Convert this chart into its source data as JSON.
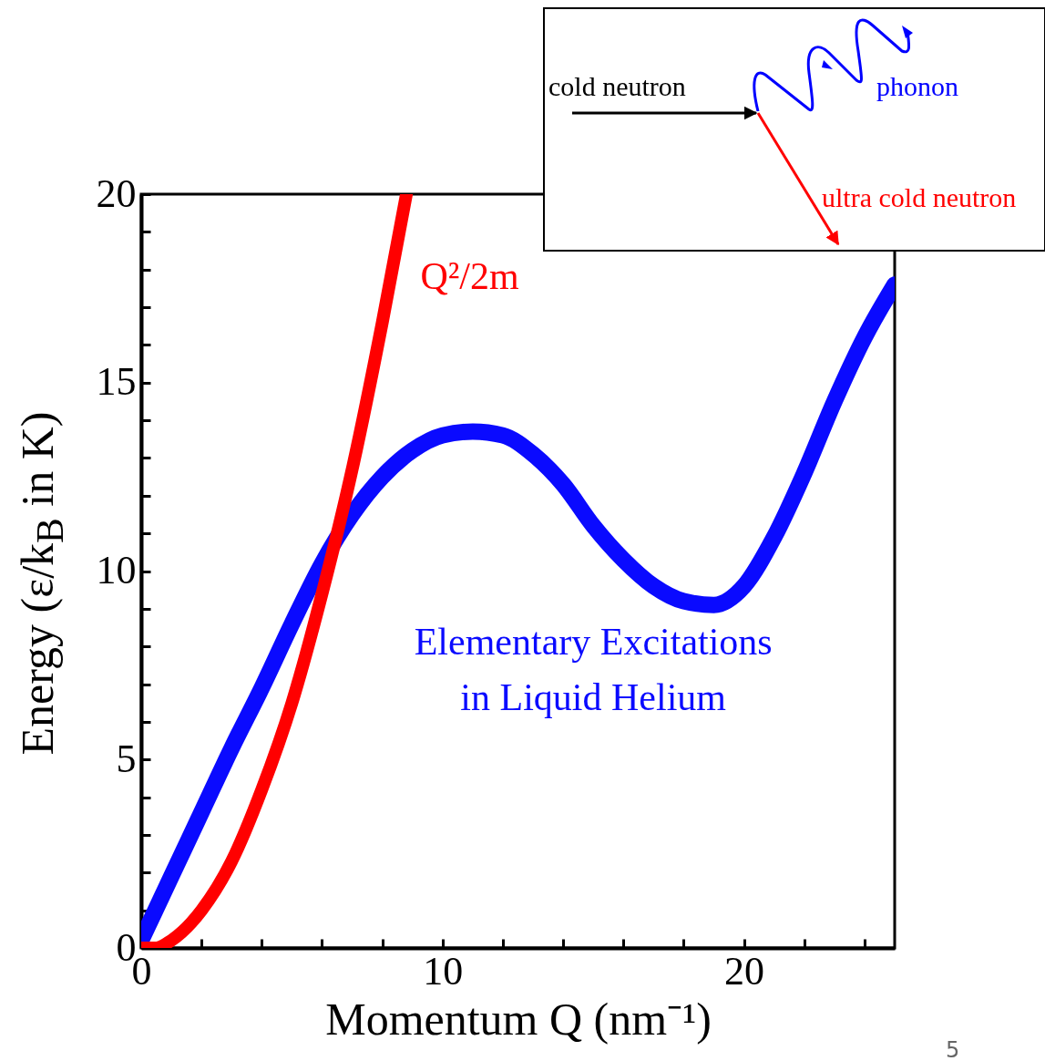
{
  "chart_data": {
    "type": "line",
    "xlabel": "Momentum Q (nm⁻¹)",
    "ylabel": "Energy (ε/k$_{B}$ in K)",
    "xlim": [
      0,
      25
    ],
    "ylim": [
      0,
      20
    ],
    "xticks": [
      0,
      {
        "value": 2,
        "label": null
      },
      {
        "value": 4,
        "label": null
      },
      {
        "value": 6,
        "label": null
      },
      {
        "value": 8,
        "label": null
      },
      10,
      {
        "value": 12,
        "label": null
      },
      {
        "value": 14,
        "label": null
      },
      {
        "value": 16,
        "label": null
      },
      {
        "value": 18,
        "label": null
      },
      20,
      {
        "value": 22,
        "label": null
      },
      {
        "value": 24,
        "label": null
      }
    ],
    "yticks": [
      0,
      {
        "value": 1,
        "label": null
      },
      {
        "value": 2,
        "label": null
      },
      {
        "value": 3,
        "label": null
      },
      {
        "value": 4,
        "label": null
      },
      5,
      {
        "value": 6,
        "label": null
      },
      {
        "value": 7,
        "label": null
      },
      {
        "value": 8,
        "label": null
      },
      {
        "value": 9,
        "label": null
      },
      10,
      {
        "value": 11,
        "label": null
      },
      {
        "value": 12,
        "label": null
      },
      {
        "value": 13,
        "label": null
      },
      {
        "value": 14,
        "label": null
      },
      15,
      {
        "value": 16,
        "label": null
      },
      {
        "value": 17,
        "label": null
      },
      {
        "value": 18,
        "label": null
      },
      {
        "value": 19,
        "label": null
      },
      20
    ],
    "series": [
      {
        "name": "Elementary Excitations in Liquid Helium",
        "color": "#0a0aff",
        "x": [
          0,
          1,
          2,
          3,
          4,
          5,
          6,
          7,
          8,
          9,
          10,
          11,
          12,
          13,
          14,
          15,
          16,
          17,
          18,
          19,
          20,
          21,
          22,
          23,
          24,
          25
        ],
        "values": [
          0.2,
          1.9,
          3.6,
          5.3,
          6.9,
          8.6,
          10.2,
          11.5,
          12.5,
          13.2,
          13.6,
          13.7,
          13.6,
          13.1,
          12.3,
          11.2,
          10.3,
          9.6,
          9.2,
          9.1,
          9.6,
          10.9,
          12.6,
          14.5,
          16.2,
          17.6
        ]
      },
      {
        "name": "Q²/2m",
        "color": "#ff0000",
        "x": [
          0,
          0.5,
          1,
          2,
          3,
          4,
          5,
          6,
          7,
          8,
          8.8
        ],
        "values": [
          0,
          0,
          0.2,
          1,
          2.3,
          4.2,
          6.5,
          9.4,
          12.7,
          16.6,
          20
        ]
      }
    ],
    "annotations": [
      "cold neutron",
      "phonon",
      "ultra cold neutron",
      "5"
    ]
  }
}
